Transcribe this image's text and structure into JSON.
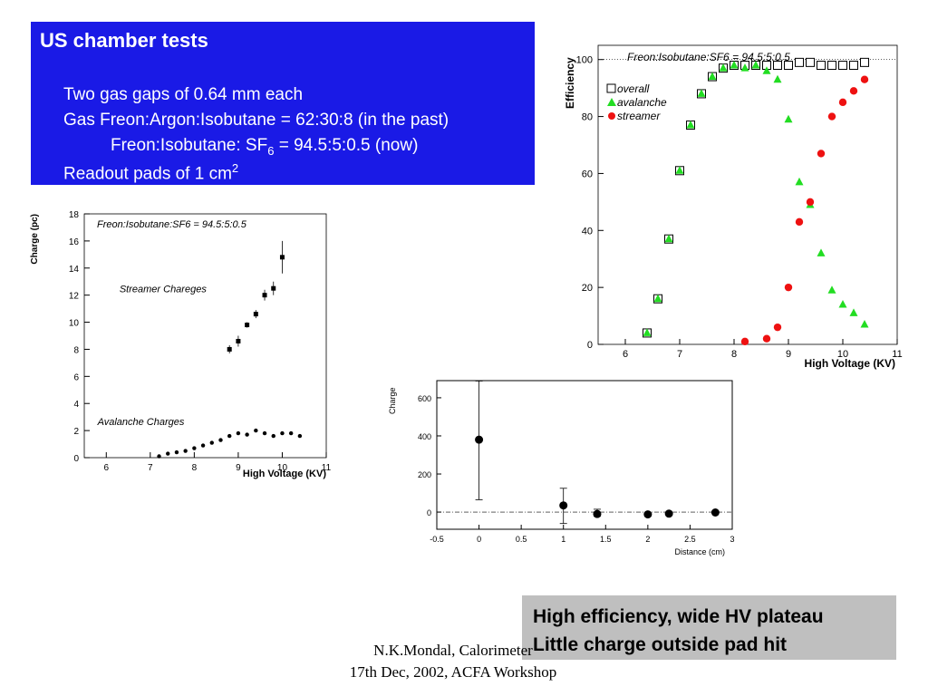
{
  "slide": {
    "title": "US chamber tests",
    "line1": "Two gas gaps of 0.64 mm each",
    "line2": "Gas Freon:Argon:Isobutane = 62:30:8 (in the past)",
    "line3_prefix": "Freon:Isobutane: SF",
    "line3_sub": "6",
    "line3_suffix": " = 94.5:5:0.5 (now)",
    "line4": "Readout pads of 1 cm",
    "line4_sup": "2",
    "summary_line1": "High efficiency, wide HV plateau",
    "summary_line2": "Little charge outside pad hit",
    "footer_line1": "N.K.Mondal, Calorimeter",
    "footer_line2": "17th Dec, 2002, ACFA Workshop"
  },
  "chart_data": [
    {
      "type": "scatter",
      "title": "Freon:Isobutane:SF6 = 94.5:5:0.5",
      "xlabel": "High Voltage (KV)",
      "ylabel": "Charge (pc)",
      "xlim": [
        5.5,
        11
      ],
      "ylim": [
        0,
        18
      ],
      "xticks": [
        6,
        7,
        8,
        9,
        10,
        11
      ],
      "yticks": [
        0,
        2,
        4,
        6,
        8,
        10,
        12,
        14,
        16,
        18
      ],
      "annotations": [
        "Streamer Chareges",
        "Avalanche Charges"
      ],
      "series": [
        {
          "marker": "square",
          "x": [
            8.8,
            9.0,
            9.2,
            9.4,
            9.6,
            9.8,
            10.0
          ],
          "y": [
            8.0,
            8.6,
            9.8,
            10.6,
            12.0,
            12.5,
            14.8
          ],
          "yerr": [
            0.3,
            0.4,
            0.2,
            0.3,
            0.4,
            0.5,
            1.2
          ]
        },
        {
          "marker": "circle",
          "x": [
            7.2,
            7.4,
            7.6,
            7.8,
            8.0,
            8.2,
            8.4,
            8.6,
            8.8,
            9.0,
            9.2,
            9.4,
            9.6,
            9.8,
            10.0,
            10.2,
            10.4
          ],
          "y": [
            0.1,
            0.3,
            0.4,
            0.5,
            0.7,
            0.9,
            1.1,
            1.3,
            1.6,
            1.8,
            1.7,
            2.0,
            1.8,
            1.6,
            1.8,
            1.8,
            1.6
          ]
        }
      ]
    },
    {
      "type": "scatter",
      "title": "Freon:Isobutane:SF6 = 94.5:5:0.5",
      "xlabel": "High Voltage (KV)",
      "ylabel": "Efficiency",
      "xlim": [
        5.5,
        11
      ],
      "ylim": [
        0,
        105
      ],
      "xticks": [
        6,
        7,
        8,
        9,
        10,
        11
      ],
      "yticks": [
        0,
        20,
        40,
        60,
        80,
        100
      ],
      "reference_line": 100,
      "legend_position": "top-left",
      "series": [
        {
          "name": "overall",
          "marker": "open-square",
          "color": "#000000",
          "x": [
            6.4,
            6.6,
            6.8,
            7.0,
            7.2,
            7.4,
            7.6,
            7.8,
            8.0,
            8.2,
            8.4,
            8.6,
            8.8,
            9.0,
            9.2,
            9.4,
            9.6,
            9.8,
            10.0,
            10.2,
            10.4
          ],
          "y": [
            4,
            16,
            37,
            61,
            77,
            88,
            94,
            97,
            98,
            98,
            98,
            98,
            98,
            98,
            99,
            99,
            98,
            98,
            98,
            98,
            99
          ]
        },
        {
          "name": "avalanche",
          "marker": "triangle",
          "color": "#22dd22",
          "x": [
            6.4,
            6.6,
            6.8,
            7.0,
            7.2,
            7.4,
            7.6,
            7.8,
            8.0,
            8.2,
            8.4,
            8.6,
            8.8,
            9.0,
            9.2,
            9.4,
            9.6,
            9.8,
            10.0,
            10.2,
            10.4
          ],
          "y": [
            4,
            16,
            37,
            61,
            77,
            88,
            94,
            97,
            98,
            97,
            98,
            96,
            93,
            79,
            57,
            49,
            32,
            19,
            14,
            11,
            7
          ]
        },
        {
          "name": "streamer",
          "marker": "circle",
          "color": "#ee1111",
          "x": [
            8.2,
            8.6,
            8.8,
            9.0,
            9.2,
            9.4,
            9.6,
            9.8,
            10.0,
            10.2,
            10.4
          ],
          "y": [
            1,
            2,
            6,
            20,
            43,
            50,
            67,
            80,
            85,
            89,
            93
          ]
        }
      ]
    },
    {
      "type": "scatter",
      "title": "",
      "xlabel": "Distance (cm)",
      "ylabel": "Charge",
      "xlim": [
        -0.5,
        3
      ],
      "ylim": [
        -90,
        690
      ],
      "xticks": [
        -0.5,
        0,
        0.5,
        1,
        1.5,
        2,
        2.5,
        3
      ],
      "xtick_labels": [
        "-0.5",
        "0",
        "0.5",
        "1",
        "1.5",
        "2",
        "2.5",
        "3"
      ],
      "yticks": [
        0,
        200,
        400,
        600
      ],
      "zero_line": true,
      "series": [
        {
          "marker": "circle",
          "x": [
            0.0,
            1.0,
            1.4,
            2.0,
            2.25,
            2.8
          ],
          "y": [
            380,
            35,
            -10,
            -12,
            -8,
            -2
          ],
          "yerr_low": [
            315,
            95,
            12,
            5,
            5,
            5
          ],
          "yerr_high": [
            308,
            90,
            25,
            5,
            5,
            5
          ]
        }
      ]
    }
  ]
}
